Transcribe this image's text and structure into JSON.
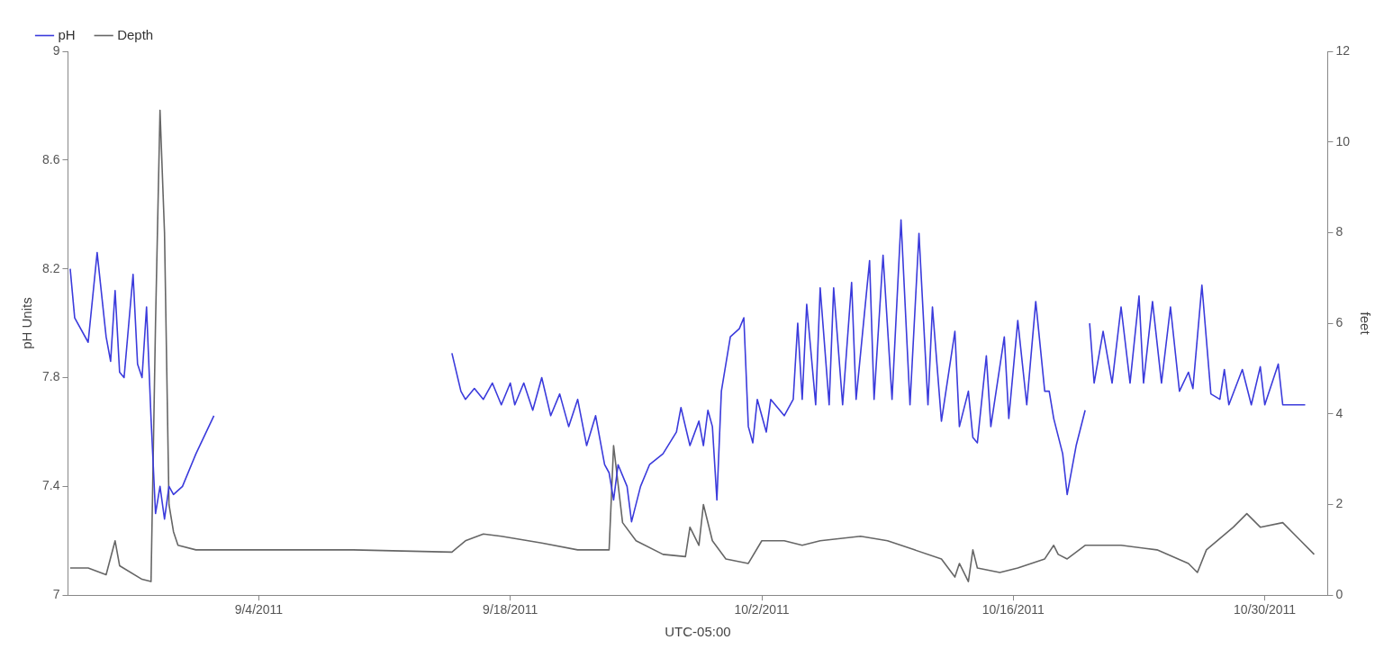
{
  "chart_data": {
    "type": "line",
    "xlabel": "UTC-05:00",
    "ylabel": "pH Units",
    "y2label": "feet",
    "xlim": [
      "2011-08-24T09:00",
      "2011-11-02T12:00"
    ],
    "xticks": [
      {
        "value": "2011-09-04",
        "label": "9/4/2011"
      },
      {
        "value": "2011-09-18",
        "label": "9/18/2011"
      },
      {
        "value": "2011-10-02",
        "label": "10/2/2011"
      },
      {
        "value": "2011-10-16",
        "label": "10/16/2011"
      },
      {
        "value": "2011-10-30",
        "label": "10/30/2011"
      }
    ],
    "ylim": [
      7,
      9
    ],
    "yticks": [
      7,
      7.4,
      7.8,
      8.2,
      8.6,
      9
    ],
    "y2lim": [
      0,
      12
    ],
    "y2ticks": [
      0,
      2,
      4,
      6,
      8,
      10,
      12
    ],
    "grid": false,
    "legend": "top left",
    "marker": "none",
    "line_style": "solid",
    "series": [
      {
        "name": "pH",
        "color": "#3b3bdc",
        "x": [
          "2011-08-24T12:00",
          "2011-08-24T18:00",
          "2011-08-25T12:00",
          "2011-08-26T00:00",
          "2011-08-26T12:00",
          "2011-08-26T18:00",
          "2011-08-27T00:00",
          "2011-08-27T06:00",
          "2011-08-27T12:00",
          "2011-08-28T00:00",
          "2011-08-28T06:00",
          "2011-08-28T12:00",
          "2011-08-28T18:00",
          "2011-08-29T00:00",
          "2011-08-29T06:00",
          "2011-08-29T12:00",
          "2011-08-29T18:00",
          "2011-08-30T00:00",
          "2011-08-30T06:00",
          "2011-08-30T18:00",
          "2011-08-31T12:00",
          "2011-09-01T12:00",
          "2011-09-02T00:00",
          "2011-09-14T18:00",
          "2011-09-15T06:00",
          "2011-09-15T12:00",
          "2011-09-16T00:00",
          "2011-09-16T12:00",
          "2011-09-17T00:00",
          "2011-09-17T12:00",
          "2011-09-18T00:00",
          "2011-09-18T06:00",
          "2011-09-18T18:00",
          "2011-09-19T06:00",
          "2011-09-19T18:00",
          "2011-09-20T06:00",
          "2011-09-20T18:00",
          "2011-09-21T06:00",
          "2011-09-21T18:00",
          "2011-09-22T06:00",
          "2011-09-22T18:00",
          "2011-09-23T06:00",
          "2011-09-23T12:00",
          "2011-09-23T18:00",
          "2011-09-24T00:00",
          "2011-09-24T12:00",
          "2011-09-24T18:00",
          "2011-09-25T06:00",
          "2011-09-25T18:00",
          "2011-09-26T12:00",
          "2011-09-27T06:00",
          "2011-09-27T12:00",
          "2011-09-28T00:00",
          "2011-09-28T12:00",
          "2011-09-28T18:00",
          "2011-09-29T00:00",
          "2011-09-29T06:00",
          "2011-09-29T12:00",
          "2011-09-29T18:00",
          "2011-09-30T06:00",
          "2011-09-30T18:00",
          "2011-10-01T00:00",
          "2011-10-01T06:00",
          "2011-10-01T12:00",
          "2011-10-01T18:00",
          "2011-10-02T06:00",
          "2011-10-02T12:00",
          "2011-10-03T06:00",
          "2011-10-03T18:00",
          "2011-10-04T00:00",
          "2011-10-04T06:00",
          "2011-10-04T12:00",
          "2011-10-05T00:00",
          "2011-10-05T06:00",
          "2011-10-05T18:00",
          "2011-10-06T00:00",
          "2011-10-06T12:00",
          "2011-10-07T00:00",
          "2011-10-07T06:00",
          "2011-10-08T00:00",
          "2011-10-08T06:00",
          "2011-10-08T18:00",
          "2011-10-09T06:00",
          "2011-10-09T18:00",
          "2011-10-10T06:00",
          "2011-10-10T18:00",
          "2011-10-11T06:00",
          "2011-10-11T12:00",
          "2011-10-12T00:00",
          "2011-10-12T18:00",
          "2011-10-13T00:00",
          "2011-10-13T12:00",
          "2011-10-13T18:00",
          "2011-10-14T00:00",
          "2011-10-14T12:00",
          "2011-10-14T18:00",
          "2011-10-15T12:00",
          "2011-10-15T18:00",
          "2011-10-16T06:00",
          "2011-10-16T18:00",
          "2011-10-17T06:00",
          "2011-10-17T18:00",
          "2011-10-18T00:00",
          "2011-10-18T06:00",
          "2011-10-18T18:00",
          "2011-10-19T00:00",
          "2011-10-19T12:00",
          "2011-10-20T00:00",
          "2011-10-20T03:00",
          "2011-10-20T06:00",
          "2011-10-20T12:00",
          "2011-10-21T00:00",
          "2011-10-21T12:00",
          "2011-10-22T00:00",
          "2011-10-22T12:00",
          "2011-10-23T00:00",
          "2011-10-23T06:00",
          "2011-10-23T18:00",
          "2011-10-24T06:00",
          "2011-10-24T18:00",
          "2011-10-25T06:00",
          "2011-10-25T18:00",
          "2011-10-26T00:00",
          "2011-10-26T12:00",
          "2011-10-27T00:00",
          "2011-10-27T12:00",
          "2011-10-27T18:00",
          "2011-10-28T00:00",
          "2011-10-28T18:00",
          "2011-10-29T06:00",
          "2011-10-29T18:00",
          "2011-10-30T00:00",
          "2011-10-30T18:00",
          "2011-10-31T00:00",
          "2011-11-01T06:00"
        ],
        "values": [
          8.2,
          8.02,
          7.93,
          8.26,
          7.95,
          7.86,
          8.12,
          7.82,
          7.8,
          8.18,
          7.85,
          7.8,
          8.06,
          7.65,
          7.3,
          7.4,
          7.28,
          7.4,
          7.37,
          7.4,
          7.52,
          7.66,
          null,
          7.89,
          7.75,
          7.72,
          7.76,
          7.72,
          7.78,
          7.7,
          7.78,
          7.7,
          7.78,
          7.68,
          7.8,
          7.66,
          7.74,
          7.62,
          7.72,
          7.55,
          7.66,
          7.48,
          7.45,
          7.35,
          7.48,
          7.4,
          7.27,
          7.4,
          7.48,
          7.52,
          7.6,
          7.69,
          7.55,
          7.64,
          7.55,
          7.68,
          7.62,
          7.35,
          7.75,
          7.95,
          7.98,
          8.02,
          7.62,
          7.56,
          7.72,
          7.6,
          7.72,
          7.66,
          7.72,
          8.0,
          7.72,
          8.07,
          7.7,
          8.13,
          7.7,
          8.13,
          7.7,
          8.15,
          7.72,
          8.23,
          7.72,
          8.25,
          7.72,
          8.38,
          7.7,
          8.33,
          7.7,
          8.06,
          7.64,
          7.97,
          7.62,
          7.75,
          7.58,
          7.56,
          7.88,
          7.62,
          7.95,
          7.65,
          8.01,
          7.7,
          8.08,
          7.75,
          7.75,
          7.65,
          7.52,
          7.37,
          7.55,
          7.68,
          null,
          8.0,
          7.78,
          7.97,
          7.78,
          8.06,
          7.78,
          8.1,
          7.78,
          8.08,
          7.78,
          8.06,
          7.75,
          7.82,
          7.76,
          8.14,
          7.74,
          7.72,
          7.83,
          7.7,
          7.83,
          7.7,
          7.84,
          7.7,
          7.85,
          7.7,
          7.7
        ]
      },
      {
        "name": "Depth",
        "color": "#666666",
        "axis": "y2",
        "x": [
          "2011-08-24T12:00",
          "2011-08-25T12:00",
          "2011-08-26T12:00",
          "2011-08-27T00:00",
          "2011-08-27T06:00",
          "2011-08-28T12:00",
          "2011-08-29T00:00",
          "2011-08-29T06:00",
          "2011-08-29T12:00",
          "2011-08-29T18:00",
          "2011-08-30T00:00",
          "2011-08-30T06:00",
          "2011-08-30T12:00",
          "2011-08-31T12:00",
          "2011-09-09T06:00",
          "2011-09-14T18:00",
          "2011-09-15T12:00",
          "2011-09-16T12:00",
          "2011-09-17T12:00",
          "2011-09-19T18:00",
          "2011-09-21T18:00",
          "2011-09-23T12:00",
          "2011-09-23T18:00",
          "2011-09-24T06:00",
          "2011-09-25T00:00",
          "2011-09-26T12:00",
          "2011-09-27T18:00",
          "2011-09-28T00:00",
          "2011-09-28T12:00",
          "2011-09-28T18:00",
          "2011-09-29T06:00",
          "2011-09-30T00:00",
          "2011-10-01T06:00",
          "2011-10-02T00:00",
          "2011-10-03T06:00",
          "2011-10-04T06:00",
          "2011-10-05T06:00",
          "2011-10-07T12:00",
          "2011-10-09T00:00",
          "2011-10-10T12:00",
          "2011-10-12T00:00",
          "2011-10-12T18:00",
          "2011-10-13T00:00",
          "2011-10-13T12:00",
          "2011-10-13T18:00",
          "2011-10-14T00:00",
          "2011-10-15T06:00",
          "2011-10-16T06:00",
          "2011-10-17T18:00",
          "2011-10-18T06:00",
          "2011-10-18T12:00",
          "2011-10-19T00:00",
          "2011-10-20T00:00",
          "2011-10-22T00:00",
          "2011-10-24T00:00",
          "2011-10-25T18:00",
          "2011-10-26T06:00",
          "2011-10-26T18:00",
          "2011-10-28T06:00",
          "2011-10-29T00:00",
          "2011-10-29T18:00",
          "2011-10-31T00:00",
          "2011-11-01T00:00",
          "2011-11-01T18:00"
        ],
        "values": [
          0.6,
          0.6,
          0.45,
          1.2,
          0.65,
          0.35,
          0.3,
          6.0,
          10.7,
          8.0,
          2.0,
          1.4,
          1.1,
          1.0,
          1.0,
          0.95,
          1.2,
          1.35,
          1.3,
          1.15,
          1.0,
          1.0,
          3.3,
          1.6,
          1.2,
          0.9,
          0.85,
          1.5,
          1.1,
          2.0,
          1.2,
          0.8,
          0.7,
          1.2,
          1.2,
          1.1,
          1.2,
          1.3,
          1.2,
          1.0,
          0.8,
          0.4,
          0.7,
          0.3,
          1.0,
          0.6,
          0.5,
          0.6,
          0.8,
          1.1,
          0.9,
          0.8,
          1.1,
          1.1,
          1.0,
          0.7,
          0.5,
          1.0,
          1.5,
          1.8,
          1.5,
          1.6,
          1.2,
          0.9
        ]
      }
    ]
  }
}
